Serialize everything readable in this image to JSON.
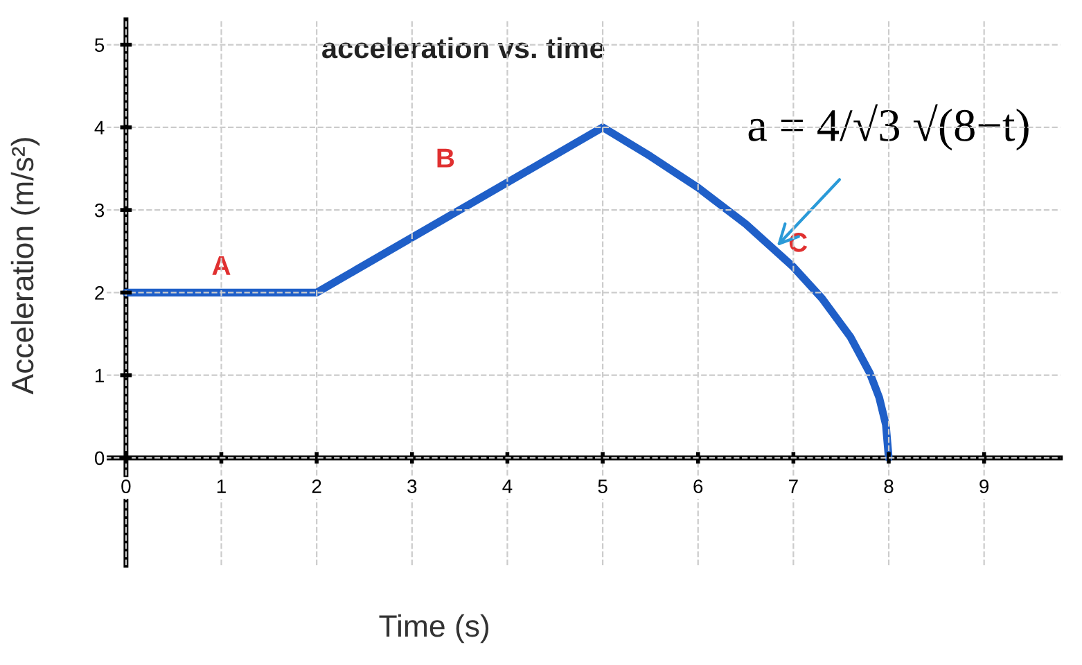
{
  "chart_data": {
    "type": "line",
    "title": "acceleration vs. time",
    "xlabel": "Time (s)",
    "ylabel": "Acceleration (m/s²)",
    "x": [
      0,
      2,
      5,
      5.5,
      6,
      6.5,
      7,
      7.3,
      7.6,
      7.8,
      7.9,
      7.97,
      8
    ],
    "series": [
      {
        "color": "#1f5fc8",
        "values": [
          2,
          2,
          4,
          3.65,
          3.27,
          2.83,
          2.31,
          1.93,
          1.46,
          1.03,
          0.73,
          0.4,
          0
        ]
      }
    ],
    "xlim": [
      -0.3,
      9.8
    ],
    "ylim": [
      -1.3,
      5.3
    ],
    "xticks": [
      0,
      1,
      2,
      3,
      4,
      5,
      6,
      7,
      8,
      9
    ],
    "yticks": [
      0,
      1,
      2,
      3,
      4,
      5
    ],
    "grid": true,
    "marker": "none",
    "line_style": "solid",
    "annotations": [
      {
        "text": "A",
        "x": 1,
        "y": 2
      },
      {
        "text": "B",
        "x": 3.5,
        "y": 3
      },
      {
        "text": "C",
        "x": 6.8,
        "y": 2.53
      },
      {
        "text": "a = 4/√3 √(8−t)",
        "x": 6.8,
        "y": 2.53
      }
    ]
  }
}
